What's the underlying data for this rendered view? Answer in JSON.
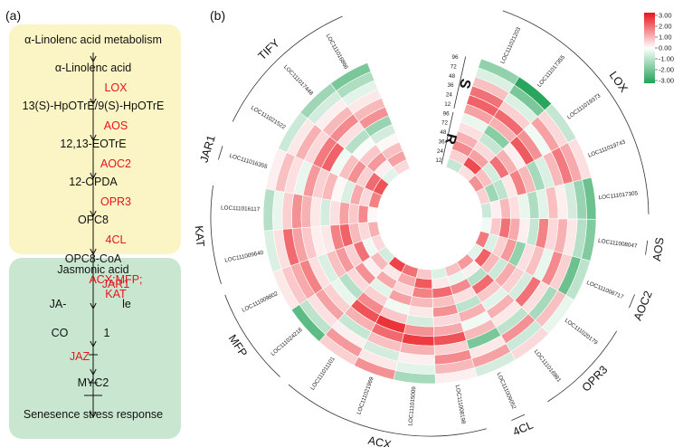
{
  "panels": {
    "a": "(a)",
    "b": "(b)"
  },
  "pathway": {
    "top_box_color": "#fbf4c5",
    "bottom_box_color": "#c9e7d0",
    "steps": [
      {
        "text": "α-Linolenc acid metabolism",
        "type": "metab"
      },
      {
        "text": "α-Linolenc acid",
        "type": "metab"
      },
      {
        "text": "LOX",
        "type": "enzyme"
      },
      {
        "text": "13(S)-HpOTrE/9(S)-HpOTrE",
        "type": "metab"
      },
      {
        "text": "AOS",
        "type": "enzyme"
      },
      {
        "text": "12,13-EOTrE",
        "type": "metab"
      },
      {
        "text": "AOC2",
        "type": "enzyme"
      },
      {
        "text": "12-OPDA",
        "type": "metab"
      },
      {
        "text": "OPR3",
        "type": "enzyme"
      },
      {
        "text": "OPC8",
        "type": "metab"
      },
      {
        "text": "4CL",
        "type": "enzyme"
      },
      {
        "text": "OPC8-CoA",
        "type": "metab"
      },
      {
        "text": "ACX;MFP;",
        "type": "enzyme"
      },
      {
        "text": "KAT",
        "type": "enzyme"
      },
      {
        "text": "Jasmonic acid",
        "type": "metab"
      },
      {
        "text": "JAR1",
        "type": "enzyme"
      },
      {
        "text": "JA-",
        "type": "metab"
      },
      {
        "text": "le",
        "type": "metab"
      },
      {
        "text": "CO",
        "type": "metab"
      },
      {
        "text": "1",
        "type": "metab"
      },
      {
        "text": "JAZ",
        "type": "enzyme"
      },
      {
        "text": "MYC2",
        "type": "metab"
      },
      {
        "text": "Senesence stress response",
        "type": "metab"
      }
    ]
  },
  "heatmap": {
    "rings_S": [
      "96",
      "72",
      "48",
      "36",
      "24",
      "12"
    ],
    "rings_R": [
      "96",
      "72",
      "48",
      "36",
      "24",
      "12"
    ],
    "group_S": "S",
    "group_R": "R",
    "genes": [
      "LOC111021203",
      "LOC111017355",
      "LOC111019373",
      "LOC111019743",
      "LOC111017305",
      "LOC111008047",
      "LOC111006717",
      "LOC111020179",
      "LOC111016981",
      "LOC111009052",
      "LOC111008198",
      "LOC111015009",
      "LOC111021969",
      "LOC111011101",
      "LOC111024218",
      "LOC111009802",
      "LOC111009640",
      "LOC111016117",
      "LOC111016355",
      "LOC111021522",
      "LOC111017448",
      "LOC111016866"
    ],
    "gene_groups": [
      {
        "name": "LOX",
        "start": 0,
        "end": 4
      },
      {
        "name": "AOS",
        "start": 5,
        "end": 5
      },
      {
        "name": "AOC2",
        "start": 6,
        "end": 6
      },
      {
        "name": "OPR3",
        "start": 7,
        "end": 8
      },
      {
        "name": "4CL",
        "start": 9,
        "end": 9
      },
      {
        "name": "ACX",
        "start": 10,
        "end": 13
      },
      {
        "name": "MFP",
        "start": 14,
        "end": 15
      },
      {
        "name": "KAT",
        "start": 16,
        "end": 17
      },
      {
        "name": "JAR1",
        "start": 18,
        "end": 18
      },
      {
        "name": "TIFY",
        "start": 19,
        "end": 21
      }
    ],
    "values": [
      [
        -1.5,
        -0.5,
        0.8,
        1.8,
        2.0,
        1.2,
        -0.3,
        0.4,
        1.0,
        1.5,
        0.6,
        -0.8
      ],
      [
        -2.9,
        -1.8,
        -0.5,
        0.6,
        1.9,
        1.0,
        -1.6,
        -0.8,
        0.5,
        1.2,
        2.3,
        0.4
      ],
      [
        -0.8,
        0.5,
        1.2,
        -0.2,
        1.4,
        2.1,
        0.2,
        1.0,
        1.8,
        -0.6,
        0.8,
        1.4
      ],
      [
        0.4,
        1.1,
        1.7,
        0.9,
        -0.5,
        -1.2,
        0.9,
        1.6,
        0.3,
        -0.9,
        -1.3,
        0.6
      ],
      [
        -2.0,
        -1.4,
        -0.6,
        0.2,
        0.8,
        -0.4,
        -1.1,
        -0.3,
        0.4,
        0.9,
        0.2,
        -0.7
      ],
      [
        -1.7,
        -1.0,
        0.3,
        1.0,
        0.5,
        1.6,
        -0.8,
        0.2,
        1.1,
        1.8,
        0.7,
        -0.2
      ],
      [
        -0.9,
        -2.0,
        0.6,
        1.5,
        -0.3,
        0.8,
        0.4,
        -1.5,
        1.3,
        0.6,
        -0.5,
        1.7
      ],
      [
        -0.3,
        0.8,
        -1.2,
        0.4,
        1.8,
        -0.6,
        0.6,
        1.1,
        -0.7,
        0.9,
        2.0,
        -0.4
      ],
      [
        0.5,
        -0.7,
        1.4,
        -0.9,
        0.3,
        1.0,
        -0.4,
        0.7,
        1.9,
        -1.0,
        0.2,
        1.3
      ],
      [
        -0.6,
        1.2,
        0.3,
        -1.8,
        0.9,
        -0.2,
        1.0,
        -0.9,
        0.4,
        1.5,
        -0.3,
        0.8
      ],
      [
        0.2,
        0.9,
        1.5,
        0.6,
        2.2,
        1.1,
        0.5,
        1.4,
        0.8,
        1.9,
        0.3,
        -0.5
      ],
      [
        -1.2,
        -0.4,
        0.2,
        1.0,
        2.5,
        1.4,
        -0.6,
        0.3,
        0.9,
        1.6,
        2.1,
        0.7
      ],
      [
        1.4,
        0.3,
        -0.6,
        0.8,
        1.9,
        2.6,
        0.7,
        -0.2,
        1.2,
        0.5,
        1.1,
        1.8
      ],
      [
        0.6,
        1.3,
        0.2,
        -0.8,
        1.0,
        2.2,
        1.5,
        0.6,
        -0.4,
        1.1,
        0.3,
        2.4
      ],
      [
        -2.2,
        -0.9,
        0.4,
        1.2,
        0.6,
        -0.3,
        -1.0,
        0.5,
        1.4,
        0.2,
        0.9,
        -0.6
      ],
      [
        0.3,
        0.7,
        1.1,
        1.6,
        0.4,
        -0.5,
        0.8,
        1.3,
        0.6,
        1.8,
        -0.2,
        0.5
      ],
      [
        -0.5,
        0.4,
        1.9,
        1.2,
        0.7,
        0.2,
        0.3,
        1.6,
        2.0,
        0.9,
        0.5,
        1.0
      ],
      [
        -1.0,
        -0.3,
        0.6,
        1.4,
        1.0,
        0.3,
        -0.6,
        0.4,
        1.2,
        0.7,
        1.5,
        0.1
      ],
      [
        0.2,
        0.8,
        0.4,
        -0.3,
        1.3,
        0.6,
        0.9,
        0.1,
        -0.5,
        1.1,
        0.5,
        1.6
      ],
      [
        -0.7,
        0.3,
        1.0,
        0.5,
        1.7,
        2.0,
        -0.2,
        0.8,
        1.4,
        0.6,
        1.9,
        2.2
      ],
      [
        -1.3,
        -0.6,
        0.2,
        0.9,
        1.5,
        0.4,
        -1.0,
        -0.1,
        0.7,
        1.3,
        0.2,
        -0.4
      ],
      [
        -1.8,
        -1.1,
        -0.4,
        0.3,
        0.9,
        1.4,
        -1.4,
        -0.6,
        0.1,
        0.8,
        1.2,
        0.5
      ]
    ]
  },
  "legend": {
    "ticks": [
      "3.00",
      "2.00",
      "1.00",
      "0.00",
      "-1.00",
      "-2.00",
      "-3.00"
    ],
    "max": 3,
    "min": -3,
    "high_color": "#e8141b",
    "mid_color": "#ffffff",
    "low_color": "#22a257"
  }
}
